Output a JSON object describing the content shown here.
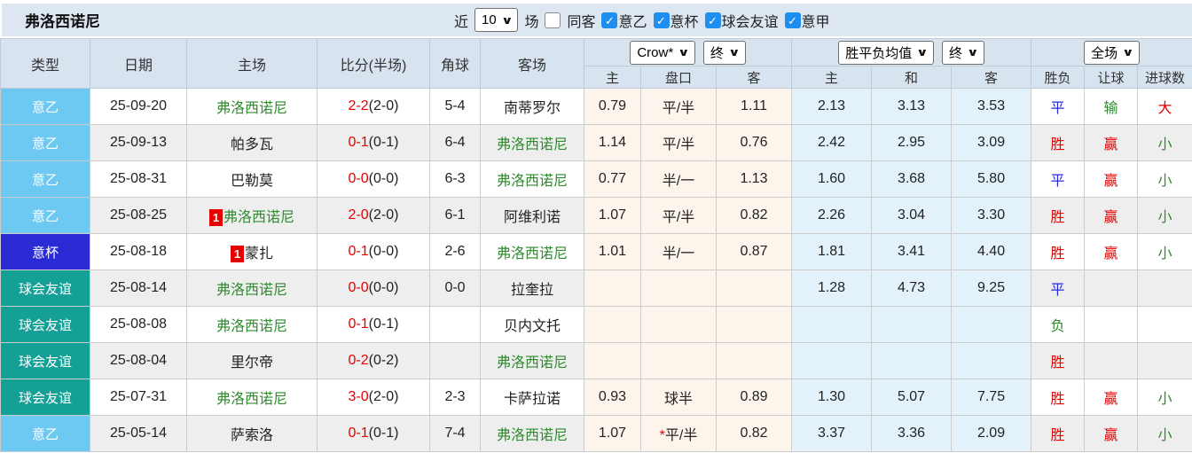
{
  "title": "弗洛西诺尼",
  "controls": {
    "recent_label": "近",
    "recent_value": "10",
    "matches_label": "场",
    "same_venue_label": "同客",
    "leagues": [
      {
        "label": "意乙",
        "checked": true
      },
      {
        "label": "意杯",
        "checked": true
      },
      {
        "label": "球会友谊",
        "checked": true
      },
      {
        "label": "意甲",
        "checked": true
      }
    ]
  },
  "header": {
    "col_type": "类型",
    "col_date": "日期",
    "col_home": "主场",
    "col_score": "比分(半场)",
    "col_corner": "角球",
    "col_away": "客场",
    "bookmaker_select": "Crow*",
    "odds_time_select": "终",
    "wdl_select": "胜平负均值",
    "wdl_time_select": "终",
    "scope_select": "全场",
    "sub_odds_home": "主",
    "sub_handicap": "盘口",
    "sub_odds_away": "客",
    "sub_avg_win": "主",
    "sub_avg_draw": "和",
    "sub_avg_lose": "客",
    "sub_result": "胜负",
    "sub_handicap_result": "让球",
    "sub_goals": "进球数"
  },
  "colors": {
    "red": "#e60000",
    "green": "#2e8b2e",
    "blue": "#2727d8",
    "serie_b": "#6ec9f2",
    "cup": "#2b2bd5",
    "friendly": "#14a096"
  },
  "rows": [
    {
      "type": "意乙",
      "type_key": "b",
      "date": "25-09-20",
      "home": {
        "name": "弗洛西诺尼",
        "focus": true,
        "badge": ""
      },
      "score": {
        "ft": "2-2",
        "ht": "(2-0)"
      },
      "corner": "5-4",
      "away": {
        "name": "南蒂罗尔",
        "focus": false
      },
      "odds": {
        "home": "0.79",
        "line": "平/半",
        "star": false,
        "away": "1.11"
      },
      "avg": {
        "win": "2.13",
        "draw": "3.13",
        "lose": "3.53"
      },
      "result": {
        "text": "平",
        "color": "blue"
      },
      "handicap": {
        "text": "输",
        "color": "green"
      },
      "goals": {
        "text": "大",
        "color": "red"
      }
    },
    {
      "type": "意乙",
      "type_key": "b",
      "date": "25-09-13",
      "home": {
        "name": "帕多瓦",
        "focus": false,
        "badge": ""
      },
      "score": {
        "ft": "0-1",
        "ht": "(0-1)"
      },
      "corner": "6-4",
      "away": {
        "name": "弗洛西诺尼",
        "focus": true
      },
      "odds": {
        "home": "1.14",
        "line": "平/半",
        "star": false,
        "away": "0.76"
      },
      "avg": {
        "win": "2.42",
        "draw": "2.95",
        "lose": "3.09"
      },
      "result": {
        "text": "胜",
        "color": "red"
      },
      "handicap": {
        "text": "赢",
        "color": "red"
      },
      "goals": {
        "text": "小",
        "color": "green"
      }
    },
    {
      "type": "意乙",
      "type_key": "b",
      "date": "25-08-31",
      "home": {
        "name": "巴勒莫",
        "focus": false,
        "badge": ""
      },
      "score": {
        "ft": "0-0",
        "ht": "(0-0)"
      },
      "corner": "6-3",
      "away": {
        "name": "弗洛西诺尼",
        "focus": true
      },
      "odds": {
        "home": "0.77",
        "line": "半/一",
        "star": false,
        "away": "1.13"
      },
      "avg": {
        "win": "1.60",
        "draw": "3.68",
        "lose": "5.80"
      },
      "result": {
        "text": "平",
        "color": "blue"
      },
      "handicap": {
        "text": "赢",
        "color": "red"
      },
      "goals": {
        "text": "小",
        "color": "green"
      }
    },
    {
      "type": "意乙",
      "type_key": "b",
      "date": "25-08-25",
      "home": {
        "name": "弗洛西诺尼",
        "focus": true,
        "badge": "1"
      },
      "score": {
        "ft": "2-0",
        "ht": "(2-0)"
      },
      "corner": "6-1",
      "away": {
        "name": "阿维利诺",
        "focus": false
      },
      "odds": {
        "home": "1.07",
        "line": "平/半",
        "star": false,
        "away": "0.82"
      },
      "avg": {
        "win": "2.26",
        "draw": "3.04",
        "lose": "3.30"
      },
      "result": {
        "text": "胜",
        "color": "red"
      },
      "handicap": {
        "text": "赢",
        "color": "red"
      },
      "goals": {
        "text": "小",
        "color": "green"
      }
    },
    {
      "type": "意杯",
      "type_key": "cup",
      "date": "25-08-18",
      "home": {
        "name": "蒙扎",
        "focus": false,
        "badge": "1"
      },
      "score": {
        "ft": "0-1",
        "ht": "(0-0)"
      },
      "corner": "2-6",
      "away": {
        "name": "弗洛西诺尼",
        "focus": true
      },
      "odds": {
        "home": "1.01",
        "line": "半/一",
        "star": false,
        "away": "0.87"
      },
      "avg": {
        "win": "1.81",
        "draw": "3.41",
        "lose": "4.40"
      },
      "result": {
        "text": "胜",
        "color": "red"
      },
      "handicap": {
        "text": "赢",
        "color": "red"
      },
      "goals": {
        "text": "小",
        "color": "green"
      }
    },
    {
      "type": "球会友谊",
      "type_key": "fr",
      "date": "25-08-14",
      "home": {
        "name": "弗洛西诺尼",
        "focus": true,
        "badge": ""
      },
      "score": {
        "ft": "0-0",
        "ht": "(0-0)"
      },
      "corner": "0-0",
      "away": {
        "name": "拉奎拉",
        "focus": false
      },
      "odds": {
        "home": "",
        "line": "",
        "star": false,
        "away": ""
      },
      "avg": {
        "win": "1.28",
        "draw": "4.73",
        "lose": "9.25"
      },
      "result": {
        "text": "平",
        "color": "blue"
      },
      "handicap": {
        "text": "",
        "color": ""
      },
      "goals": {
        "text": "",
        "color": ""
      }
    },
    {
      "type": "球会友谊",
      "type_key": "fr",
      "date": "25-08-08",
      "home": {
        "name": "弗洛西诺尼",
        "focus": true,
        "badge": ""
      },
      "score": {
        "ft": "0-1",
        "ht": "(0-1)"
      },
      "corner": "",
      "away": {
        "name": "贝内文托",
        "focus": false
      },
      "odds": {
        "home": "",
        "line": "",
        "star": false,
        "away": ""
      },
      "avg": {
        "win": "",
        "draw": "",
        "lose": ""
      },
      "result": {
        "text": "负",
        "color": "green"
      },
      "handicap": {
        "text": "",
        "color": ""
      },
      "goals": {
        "text": "",
        "color": ""
      }
    },
    {
      "type": "球会友谊",
      "type_key": "fr",
      "date": "25-08-04",
      "home": {
        "name": "里尔帝",
        "focus": false,
        "badge": ""
      },
      "score": {
        "ft": "0-2",
        "ht": "(0-2)"
      },
      "corner": "",
      "away": {
        "name": "弗洛西诺尼",
        "focus": true
      },
      "odds": {
        "home": "",
        "line": "",
        "star": false,
        "away": ""
      },
      "avg": {
        "win": "",
        "draw": "",
        "lose": ""
      },
      "result": {
        "text": "胜",
        "color": "red"
      },
      "handicap": {
        "text": "",
        "color": ""
      },
      "goals": {
        "text": "",
        "color": ""
      }
    },
    {
      "type": "球会友谊",
      "type_key": "fr",
      "date": "25-07-31",
      "home": {
        "name": "弗洛西诺尼",
        "focus": true,
        "badge": ""
      },
      "score": {
        "ft": "3-0",
        "ht": "(2-0)"
      },
      "corner": "2-3",
      "away": {
        "name": "卡萨拉诺",
        "focus": false
      },
      "odds": {
        "home": "0.93",
        "line": "球半",
        "star": false,
        "away": "0.89"
      },
      "avg": {
        "win": "1.30",
        "draw": "5.07",
        "lose": "7.75"
      },
      "result": {
        "text": "胜",
        "color": "red"
      },
      "handicap": {
        "text": "赢",
        "color": "red"
      },
      "goals": {
        "text": "小",
        "color": "green"
      }
    },
    {
      "type": "意乙",
      "type_key": "b",
      "date": "25-05-14",
      "home": {
        "name": "萨索洛",
        "focus": false,
        "badge": ""
      },
      "score": {
        "ft": "0-1",
        "ht": "(0-1)"
      },
      "corner": "7-4",
      "away": {
        "name": "弗洛西诺尼",
        "focus": true
      },
      "odds": {
        "home": "1.07",
        "line": "平/半",
        "star": true,
        "away": "0.82"
      },
      "avg": {
        "win": "3.37",
        "draw": "3.36",
        "lose": "2.09"
      },
      "result": {
        "text": "胜",
        "color": "red"
      },
      "handicap": {
        "text": "赢",
        "color": "red"
      },
      "goals": {
        "text": "小",
        "color": "green"
      }
    }
  ]
}
